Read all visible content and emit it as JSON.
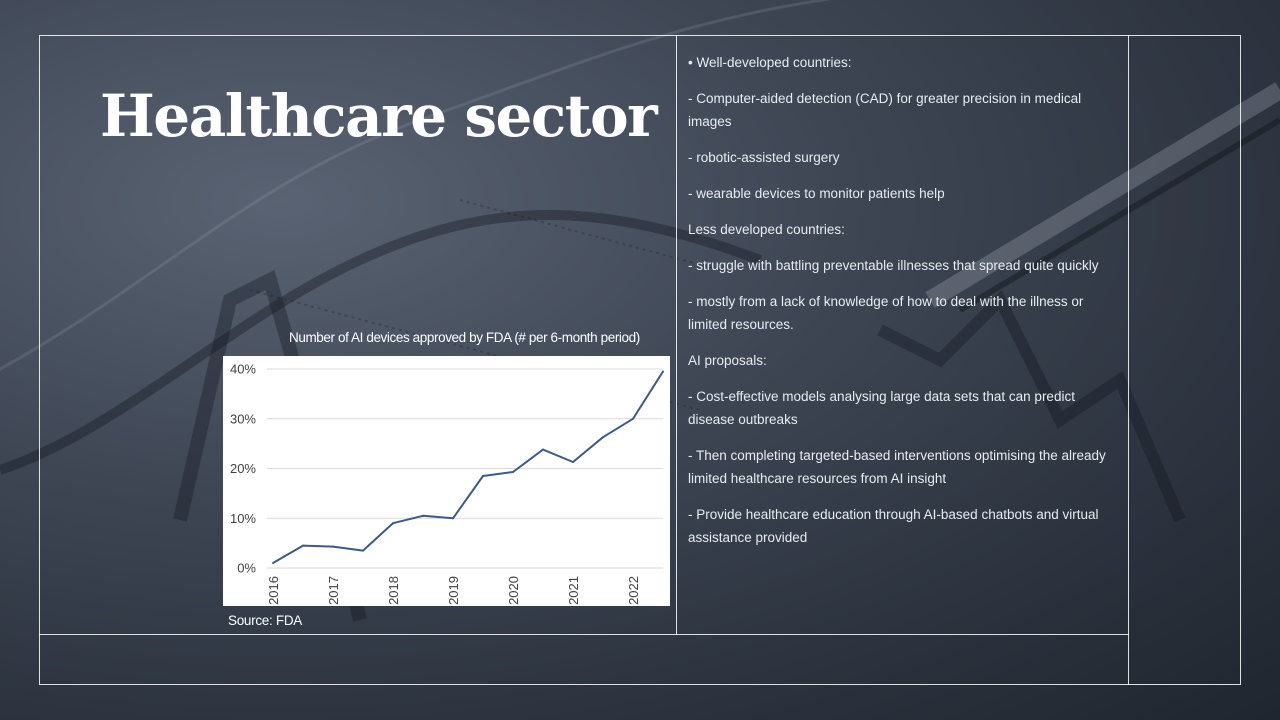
{
  "slide": {
    "title": "Healthcare sector",
    "chart_caption": "Number of AI devices approved by FDA (# per 6-month period)",
    "chart_source": "Source: FDA"
  },
  "paragraphs": [
    "•     Well-developed countries:",
    "   - Computer-aided detection (CAD) for greater precision in medical images",
    "   - robotic-assisted surgery",
    "   - wearable devices to monitor patients help",
    " Less developed countries:",
    "- struggle with battling preventable illnesses that spread quite quickly",
    " -  mostly from a lack of knowledge of how to deal with the illness or limited resources.",
    " AI proposals:",
    " - Cost-effective models analysing large data sets  that can predict disease outbreaks",
    " - Then completing targeted-based interventions optimising the already limited healthcare resources from AI insight",
    " - Provide healthcare education through AI-based chatbots and virtual assistance provided"
  ],
  "colors": {
    "line": "#3b5a8a",
    "grid": "#d9d9d9",
    "frame": "#ffffff"
  },
  "chart_data": {
    "type": "line",
    "title": "Number of AI devices approved by FDA (# per 6-month period)",
    "xlabel": "",
    "ylabel": "",
    "categories": [
      "2016",
      "2017",
      "2018",
      "2019",
      "2020",
      "2021",
      "2022"
    ],
    "y_ticks": [
      "0%",
      "10%",
      "20%",
      "30%",
      "40%"
    ],
    "ylim": [
      0,
      40
    ],
    "grid": true,
    "series": [
      {
        "x": [
          2016.0,
          2016.5,
          2017.0,
          2017.5,
          2018.0,
          2018.5,
          2019.0,
          2019.5,
          2020.0,
          2020.5,
          2021.0,
          2021.5,
          2022.0,
          2022.5
        ],
        "values": [
          1,
          4.5,
          4.3,
          3.5,
          9,
          10.5,
          10,
          18.5,
          19.3,
          23.8,
          21.3,
          26.3,
          30,
          39.5
        ]
      }
    ]
  }
}
